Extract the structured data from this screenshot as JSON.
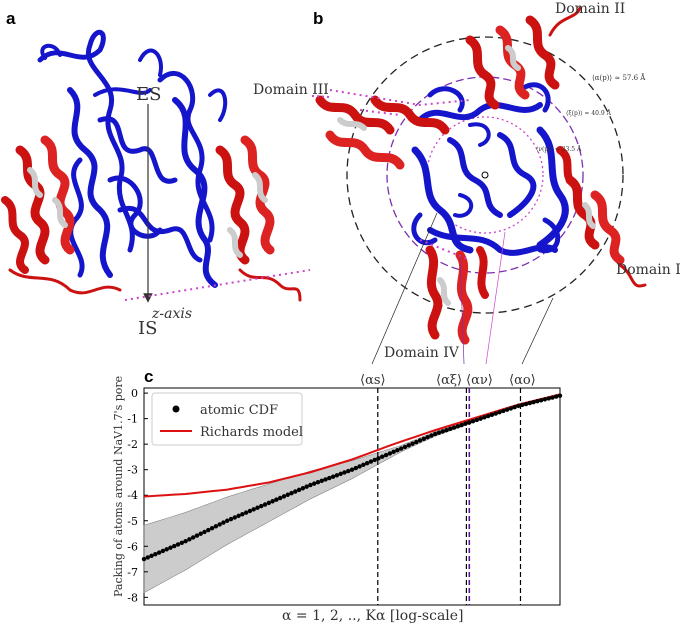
{
  "panels": {
    "a": {
      "label": "a",
      "top_text": "ES",
      "bottom_text": "IS",
      "axis_text": "z-axis"
    },
    "b": {
      "label": "b",
      "domains": [
        "Domain I",
        "Domain II",
        "Domain III",
        "Domain IV"
      ],
      "circles": [
        {
          "text": "⟨α(p)⟩ ≈ 57.6 Å",
          "radius_angstrom": 57.6,
          "color": "#333333"
        },
        {
          "text": "⟨ξ(p)⟩ ≈ 40.9 Å",
          "radius_angstrom": 40.9,
          "color": "#8a2be2"
        },
        {
          "text": "⟨ν(p)⟩ ≈ 23.5 Å",
          "radius_angstrom": 23.5,
          "color": "#cc44cc"
        }
      ]
    },
    "c": {
      "label": "c",
      "ylabel": "Packing of atoms around NaV1.7's pore",
      "xlabel": "α = 1, 2, .., Kα [log-scale]",
      "legend": [
        "atomic CDF",
        "Richards model"
      ],
      "markers": [
        "⟨αs⟩",
        "⟨αξ⟩",
        "⟨αν⟩",
        "⟨αo⟩"
      ]
    }
  },
  "chart_data": {
    "type": "line",
    "xscale": "log",
    "ylim": [
      -8.3,
      0.2
    ],
    "yticks": [
      "0",
      "-1",
      "-2",
      "-3",
      "-4",
      "-5",
      "-6",
      "-7",
      "-8"
    ],
    "series": [
      {
        "name": "atomic CDF",
        "color": "#000000",
        "style": "dots",
        "x": [
          0.0,
          0.1,
          0.2,
          0.3,
          0.4,
          0.5,
          0.6,
          0.7,
          0.8,
          0.9,
          1.0
        ],
        "y": [
          -6.5,
          -5.8,
          -5.0,
          -4.3,
          -3.6,
          -3.0,
          -2.3,
          -1.6,
          -1.05,
          -0.5,
          -0.1
        ]
      },
      {
        "name": "Richards model",
        "color": "#dd1111",
        "style": "line",
        "x": [
          0.0,
          0.1,
          0.2,
          0.3,
          0.4,
          0.5,
          0.6,
          0.7,
          0.8,
          0.9,
          1.0
        ],
        "y": [
          -4.05,
          -3.95,
          -3.78,
          -3.5,
          -3.1,
          -2.6,
          -2.0,
          -1.45,
          -0.95,
          -0.45,
          -0.05
        ]
      }
    ],
    "band": {
      "y_low_at_start": -7.7,
      "y_high_at_start": -5.3
    },
    "marker_colors": [
      "#000000",
      "#000000",
      "#5b1a9c",
      "#000000"
    ]
  }
}
